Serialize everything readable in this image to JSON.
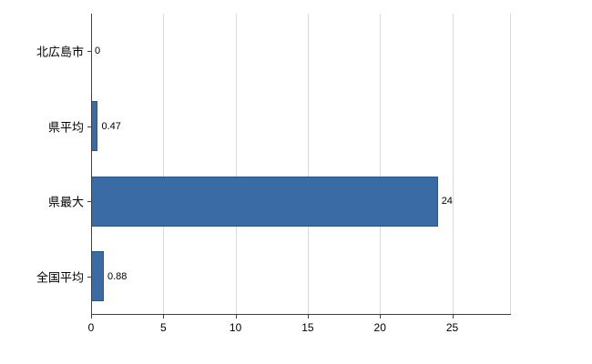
{
  "chart": {
    "background": "#ffffff",
    "bar_color": "#3a6ba5",
    "bar_border_color": "#2b5585",
    "grid_color": "#d9d9d9",
    "axis_color": "#404040"
  },
  "chart_data": {
    "type": "bar",
    "orientation": "horizontal",
    "title": "",
    "xlabel": "",
    "ylabel": "",
    "grid": true,
    "legend": false,
    "categories": [
      "北広島市",
      "県平均",
      "県最大",
      "全国平均"
    ],
    "values": [
      0,
      0.47,
      24,
      0.88
    ],
    "value_labels": [
      "0",
      "0.47",
      "24",
      "0.88"
    ],
    "x_ticks": [
      0,
      5,
      10,
      15,
      20,
      25
    ],
    "x_tick_labels": [
      "0",
      "5",
      "10",
      "15",
      "20",
      "25"
    ],
    "xlim": [
      0,
      29
    ]
  }
}
